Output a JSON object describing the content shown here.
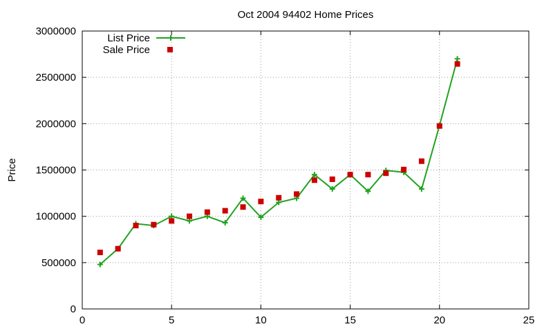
{
  "chart_data": {
    "type": "scatter",
    "title": "Oct 2004 94402 Home Prices",
    "xlabel": "",
    "ylabel": "Price",
    "xlim": [
      0,
      25
    ],
    "ylim": [
      0,
      3000000
    ],
    "x_ticks": [
      "0",
      "5",
      "10",
      "15",
      "20",
      "25"
    ],
    "y_ticks": [
      "0",
      "500000",
      "1000000",
      "1500000",
      "2000000",
      "2500000",
      "3000000"
    ],
    "grid": true,
    "legend_position": "top-left",
    "series": [
      {
        "name": "List Price",
        "style": "line+points",
        "color": "#1ea31e",
        "marker": "plus",
        "x": [
          1,
          2,
          3,
          4,
          5,
          6,
          7,
          8,
          9,
          10,
          11,
          12,
          13,
          14,
          15,
          16,
          17,
          18,
          19,
          20,
          21
        ],
        "y": [
          480000,
          650000,
          920000,
          900000,
          1000000,
          950000,
          1000000,
          930000,
          1195000,
          990000,
          1150000,
          1195000,
          1450000,
          1295000,
          1450000,
          1270000,
          1495000,
          1475000,
          1295000,
          1980000,
          2700000
        ]
      },
      {
        "name": "Sale Price",
        "style": "points",
        "color": "#cc0000",
        "marker": "square",
        "x": [
          1,
          2,
          3,
          4,
          5,
          6,
          7,
          8,
          9,
          10,
          11,
          12,
          13,
          14,
          15,
          16,
          17,
          18,
          19,
          20,
          21
        ],
        "y": [
          610000,
          650000,
          900000,
          910000,
          950000,
          1000000,
          1045000,
          1060000,
          1100000,
          1160000,
          1200000,
          1240000,
          1390000,
          1400000,
          1450000,
          1450000,
          1465000,
          1505000,
          1595000,
          1975000,
          2645000
        ]
      }
    ]
  }
}
